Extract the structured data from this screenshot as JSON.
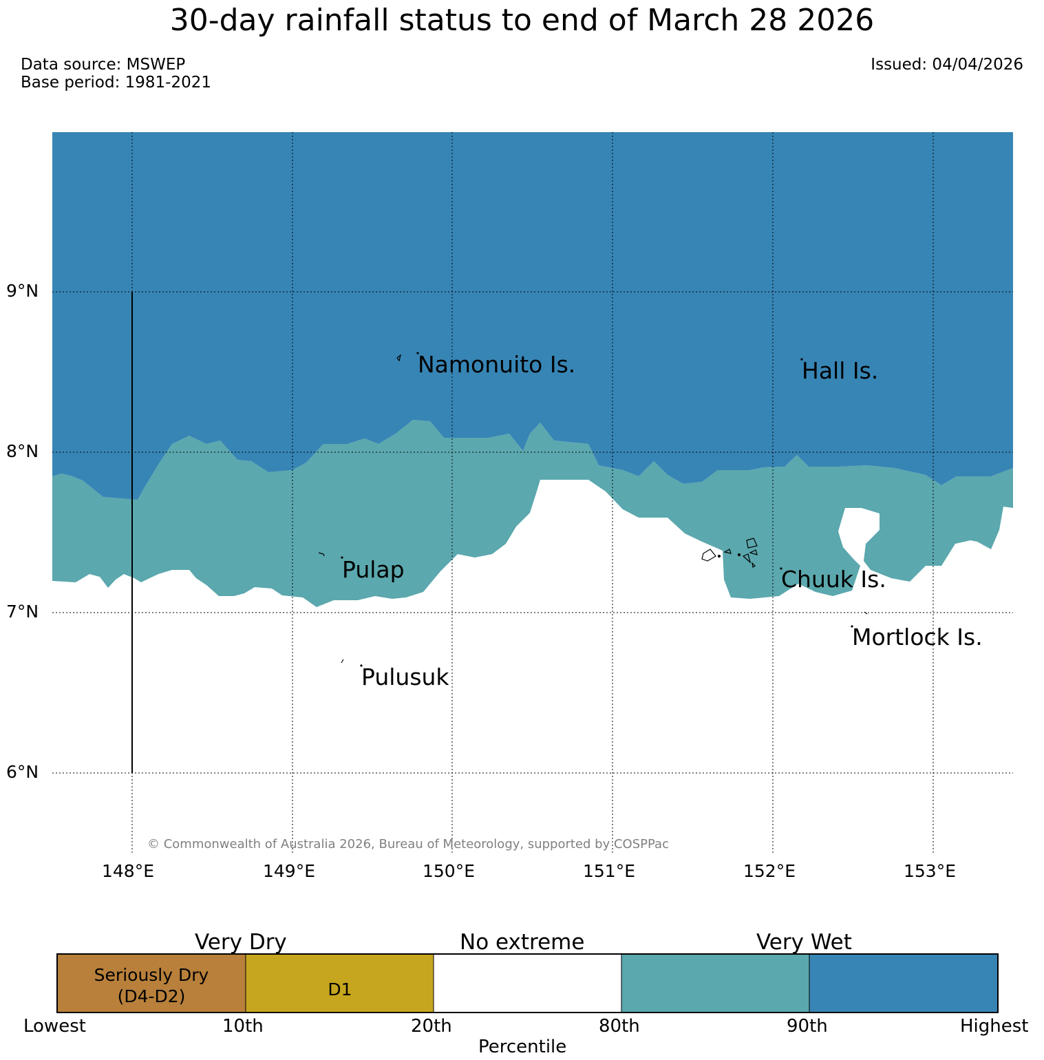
{
  "title": "30-day rainfall status to end of March 28 2026",
  "data_source": "Data source: MSWEP",
  "base_period": "Base period: 1981-2021",
  "issued": "Issued: 04/04/2026",
  "copyright": "© Commonwealth of Australia 2026, Bureau of Meteorology, supported by COSPPac",
  "map": {
    "lat_labels": [
      "9°N",
      "8°N",
      "7°N",
      "6°N"
    ],
    "lon_labels": [
      "148°E",
      "149°E",
      "150°E",
      "151°E",
      "152°E",
      "153°E"
    ],
    "places": [
      {
        "name": "Namonuito Is."
      },
      {
        "name": "Hall Is."
      },
      {
        "name": "Pulap"
      },
      {
        "name": "Chuuk Is."
      },
      {
        "name": "Mortlock Is."
      },
      {
        "name": "Pulusuk"
      }
    ],
    "colors": {
      "very_wet": "#3785b5",
      "wet": "#5ba8ae",
      "no_extreme": "#ffffff",
      "d1": "#c7a61f",
      "seriously_dry": "#b8803b"
    }
  },
  "legend": {
    "group_labels": {
      "very_dry": "Very Dry",
      "no_extreme": "No extreme",
      "very_wet": "Very Wet"
    },
    "segments": [
      {
        "label_line1": "Seriously Dry",
        "label_line2": "(D4-D2)",
        "color": "#b8803b"
      },
      {
        "label_line1": "D1",
        "label_line2": "",
        "color": "#c7a61f"
      },
      {
        "label_line1": "",
        "label_line2": "",
        "color": "#ffffff"
      },
      {
        "label_line1": "",
        "label_line2": "",
        "color": "#5ba8ae"
      },
      {
        "label_line1": "",
        "label_line2": "",
        "color": "#3785b5"
      }
    ],
    "ticks": [
      "Lowest",
      "10th",
      "20th",
      "80th",
      "90th",
      "Highest"
    ],
    "axis_label": "Percentile"
  }
}
